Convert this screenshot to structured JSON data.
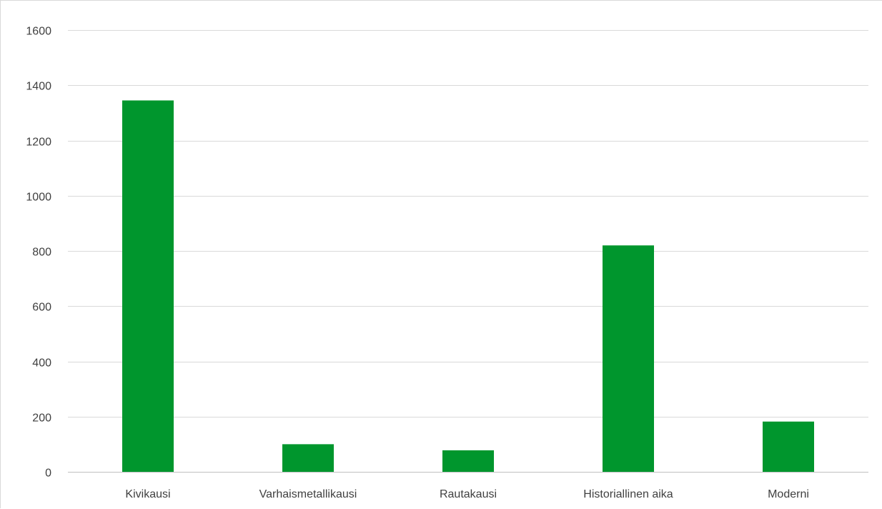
{
  "chart_data": {
    "type": "bar",
    "title": "",
    "xlabel": "",
    "ylabel": "",
    "categories": [
      "Kivikausi",
      "Varhaismetallikausi",
      "Rautakausi",
      "Historiallinen aika",
      "Moderni"
    ],
    "values": [
      1345,
      100,
      78,
      820,
      182
    ],
    "ylim": [
      0,
      1600
    ],
    "yticks": [
      0,
      200,
      400,
      600,
      800,
      1000,
      1200,
      1400,
      1600
    ],
    "grid": true,
    "legend": "none",
    "bar_color": "#00962d"
  }
}
